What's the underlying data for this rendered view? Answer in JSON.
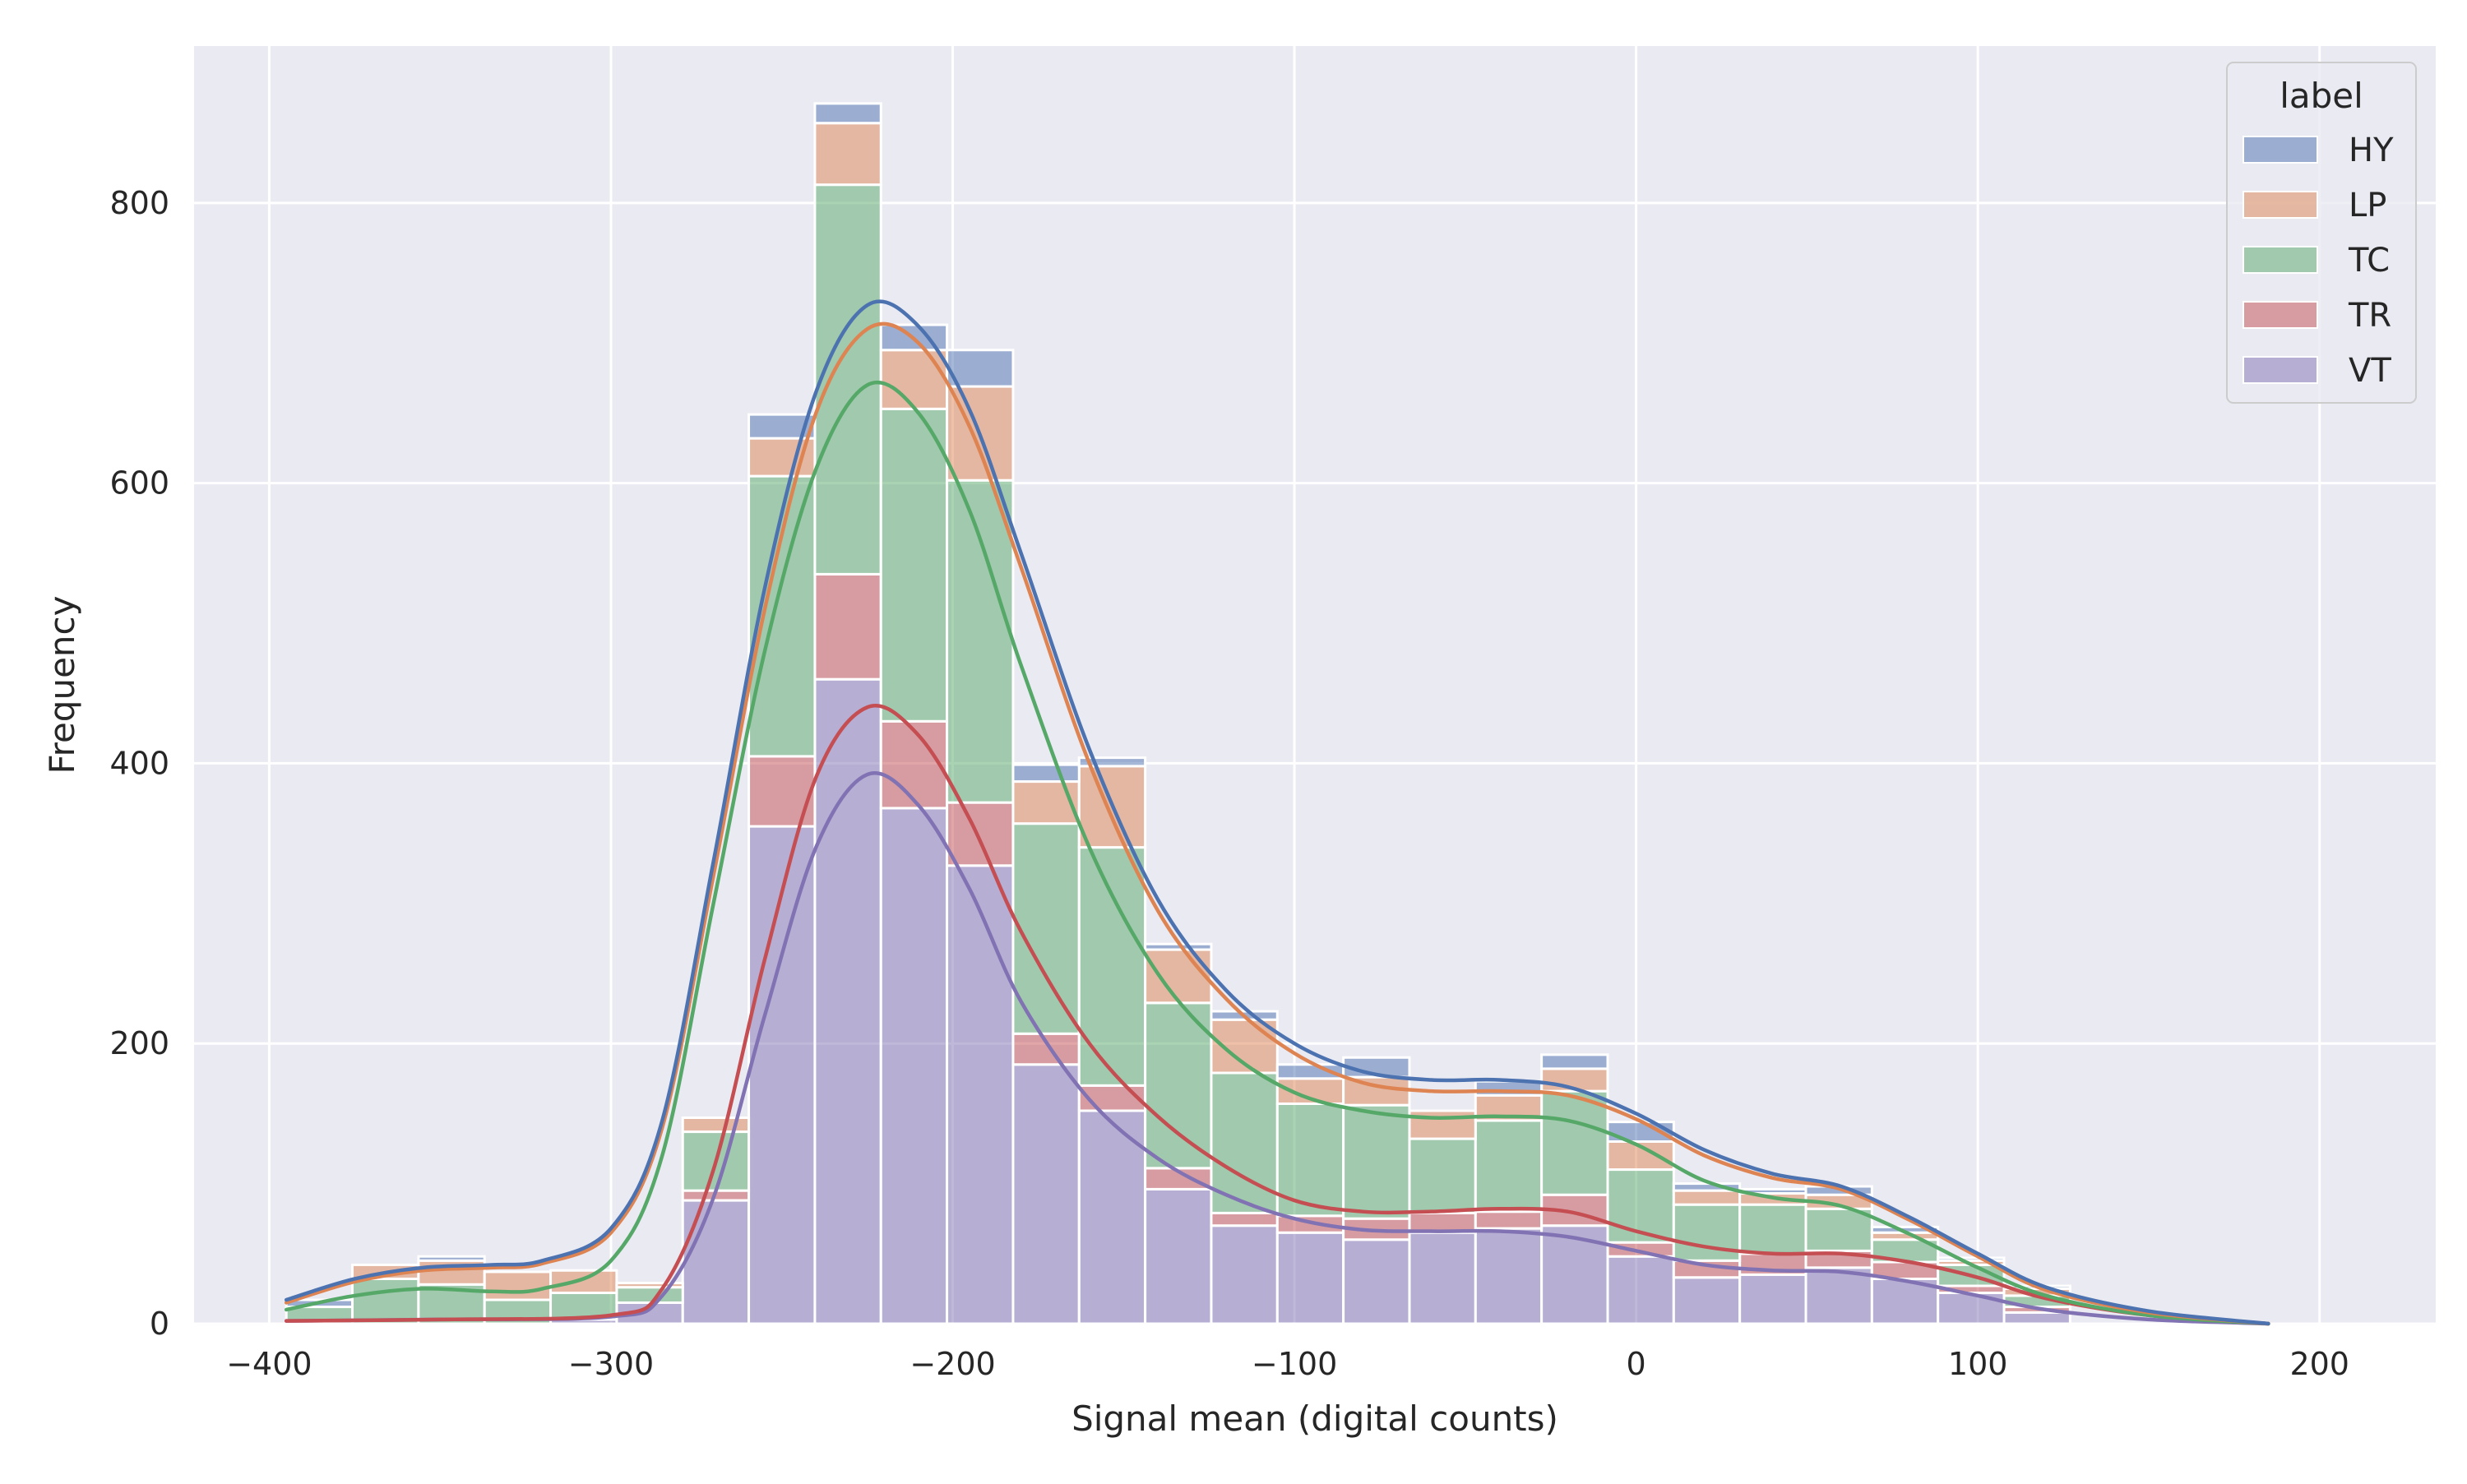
{
  "chart_data": {
    "type": "bar",
    "stacking": "stacked",
    "title": "",
    "xlabel": "Signal mean (digital counts)",
    "ylabel": "Frequency",
    "xlim": [
      -422,
      234
    ],
    "ylim": [
      0,
      912
    ],
    "xticks": [
      -400,
      -300,
      -200,
      -100,
      0,
      100,
      200
    ],
    "xtick_labels": [
      "−400",
      "−300",
      "−200",
      "−100",
      "0",
      "100",
      "200"
    ],
    "yticks": [
      0,
      200,
      400,
      600,
      800
    ],
    "ytick_labels": [
      "0",
      "200",
      "400",
      "600",
      "800"
    ],
    "grid": true,
    "legend": {
      "title": "label",
      "placement": "top-right"
    },
    "bin_edges": [
      -395,
      -375.67,
      -356.33,
      -337,
      -317.67,
      -298.33,
      -279,
      -259.67,
      -240.33,
      -221,
      -201.67,
      -182.33,
      -163,
      -143.67,
      -124.33,
      -105,
      -85.67,
      -66.33,
      -47,
      -27.67,
      -8.33,
      11,
      30.33,
      49.67,
      69,
      88.33,
      107.67,
      127
    ],
    "series": [
      {
        "name": "VT",
        "color": "#8172b3",
        "values": [
          0,
          0,
          0,
          0,
          3,
          15,
          88,
          355,
          460,
          368,
          327,
          185,
          152,
          96,
          70,
          65,
          60,
          65,
          68,
          70,
          48,
          33,
          35,
          40,
          32,
          22,
          8
        ]
      },
      {
        "name": "TR",
        "color": "#c44e52",
        "values": [
          0,
          0,
          0,
          0,
          0,
          0,
          7,
          50,
          75,
          62,
          45,
          22,
          18,
          15,
          9,
          12,
          15,
          14,
          12,
          22,
          10,
          12,
          15,
          12,
          12,
          5,
          4
        ]
      },
      {
        "name": "TC",
        "color": "#55a868",
        "values": [
          12,
          32,
          28,
          17,
          19,
          11,
          42,
          200,
          278,
          223,
          230,
          150,
          170,
          118,
          100,
          80,
          81,
          53,
          65,
          74,
          52,
          40,
          35,
          30,
          16,
          15,
          8
        ]
      },
      {
        "name": "LP",
        "color": "#dd8452",
        "values": [
          0,
          10,
          17,
          20,
          16,
          3,
          10,
          27,
          44,
          42,
          67,
          30,
          58,
          38,
          38,
          18,
          20,
          20,
          18,
          16,
          20,
          10,
          8,
          10,
          5,
          3,
          5
        ]
      },
      {
        "name": "HY",
        "color": "#4c72b0",
        "values": [
          5,
          0,
          3,
          0,
          0,
          0,
          0,
          17,
          14,
          18,
          26,
          12,
          6,
          4,
          6,
          10,
          14,
          0,
          10,
          10,
          14,
          5,
          3,
          6,
          4,
          2,
          2
        ]
      }
    ],
    "legend_order": [
      "HY",
      "LP",
      "TC",
      "TR",
      "VT"
    ],
    "kde": [
      {
        "name": "VT",
        "points": [
          [
            -395,
            2
          ],
          [
            -350,
            3
          ],
          [
            -300,
            5
          ],
          [
            -285,
            20
          ],
          [
            -270,
            90
          ],
          [
            -255,
            220
          ],
          [
            -240,
            340
          ],
          [
            -225,
            392
          ],
          [
            -210,
            370
          ],
          [
            -195,
            310
          ],
          [
            -180,
            230
          ],
          [
            -160,
            160
          ],
          [
            -140,
            118
          ],
          [
            -120,
            92
          ],
          [
            -100,
            75
          ],
          [
            -80,
            67
          ],
          [
            -60,
            66
          ],
          [
            -40,
            66
          ],
          [
            -20,
            62
          ],
          [
            0,
            52
          ],
          [
            20,
            42
          ],
          [
            40,
            38
          ],
          [
            60,
            37
          ],
          [
            80,
            30
          ],
          [
            100,
            20
          ],
          [
            120,
            10
          ],
          [
            150,
            3
          ],
          [
            185,
            0
          ]
        ]
      },
      {
        "name": "TR",
        "points": [
          [
            -395,
            2
          ],
          [
            -350,
            3
          ],
          [
            -300,
            6
          ],
          [
            -285,
            25
          ],
          [
            -270,
            110
          ],
          [
            -255,
            260
          ],
          [
            -240,
            390
          ],
          [
            -225,
            440
          ],
          [
            -210,
            420
          ],
          [
            -195,
            360
          ],
          [
            -180,
            280
          ],
          [
            -160,
            200
          ],
          [
            -140,
            148
          ],
          [
            -120,
            112
          ],
          [
            -100,
            88
          ],
          [
            -80,
            80
          ],
          [
            -60,
            80
          ],
          [
            -40,
            82
          ],
          [
            -20,
            80
          ],
          [
            0,
            66
          ],
          [
            20,
            55
          ],
          [
            40,
            50
          ],
          [
            60,
            50
          ],
          [
            80,
            44
          ],
          [
            100,
            33
          ],
          [
            120,
            18
          ],
          [
            150,
            6
          ],
          [
            185,
            0
          ]
        ]
      },
      {
        "name": "TC",
        "points": [
          [
            -395,
            10
          ],
          [
            -375,
            20
          ],
          [
            -355,
            25
          ],
          [
            -335,
            23
          ],
          [
            -320,
            25
          ],
          [
            -300,
            45
          ],
          [
            -285,
            120
          ],
          [
            -270,
            300
          ],
          [
            -255,
            480
          ],
          [
            -240,
            610
          ],
          [
            -225,
            670
          ],
          [
            -210,
            650
          ],
          [
            -195,
            580
          ],
          [
            -180,
            470
          ],
          [
            -160,
            340
          ],
          [
            -140,
            250
          ],
          [
            -120,
            196
          ],
          [
            -100,
            165
          ],
          [
            -80,
            152
          ],
          [
            -60,
            147
          ],
          [
            -40,
            148
          ],
          [
            -20,
            145
          ],
          [
            0,
            128
          ],
          [
            20,
            102
          ],
          [
            40,
            90
          ],
          [
            60,
            84
          ],
          [
            80,
            64
          ],
          [
            100,
            40
          ],
          [
            120,
            20
          ],
          [
            150,
            6
          ],
          [
            185,
            0
          ]
        ]
      },
      {
        "name": "LP",
        "points": [
          [
            -395,
            15
          ],
          [
            -375,
            30
          ],
          [
            -355,
            38
          ],
          [
            -335,
            40
          ],
          [
            -320,
            43
          ],
          [
            -300,
            65
          ],
          [
            -285,
            140
          ],
          [
            -270,
            320
          ],
          [
            -255,
            510
          ],
          [
            -240,
            650
          ],
          [
            -225,
            710
          ],
          [
            -210,
            700
          ],
          [
            -195,
            640
          ],
          [
            -180,
            540
          ],
          [
            -160,
            400
          ],
          [
            -140,
            295
          ],
          [
            -120,
            232
          ],
          [
            -100,
            193
          ],
          [
            -80,
            172
          ],
          [
            -60,
            166
          ],
          [
            -40,
            166
          ],
          [
            -20,
            163
          ],
          [
            0,
            146
          ],
          [
            20,
            120
          ],
          [
            40,
            104
          ],
          [
            60,
            96
          ],
          [
            80,
            74
          ],
          [
            100,
            48
          ],
          [
            120,
            24
          ],
          [
            150,
            8
          ],
          [
            185,
            0
          ]
        ]
      },
      {
        "name": "HY",
        "points": [
          [
            -395,
            17
          ],
          [
            -375,
            32
          ],
          [
            -355,
            40
          ],
          [
            -335,
            42
          ],
          [
            -320,
            45
          ],
          [
            -300,
            68
          ],
          [
            -285,
            145
          ],
          [
            -270,
            330
          ],
          [
            -255,
            525
          ],
          [
            -240,
            665
          ],
          [
            -225,
            727
          ],
          [
            -210,
            712
          ],
          [
            -195,
            652
          ],
          [
            -180,
            550
          ],
          [
            -160,
            410
          ],
          [
            -140,
            303
          ],
          [
            -120,
            238
          ],
          [
            -100,
            200
          ],
          [
            -80,
            180
          ],
          [
            -60,
            174
          ],
          [
            -40,
            174
          ],
          [
            -20,
            169
          ],
          [
            0,
            150
          ],
          [
            20,
            124
          ],
          [
            40,
            107
          ],
          [
            60,
            98
          ],
          [
            80,
            76
          ],
          [
            100,
            50
          ],
          [
            120,
            26
          ],
          [
            150,
            9
          ],
          [
            185,
            0
          ]
        ]
      }
    ]
  }
}
